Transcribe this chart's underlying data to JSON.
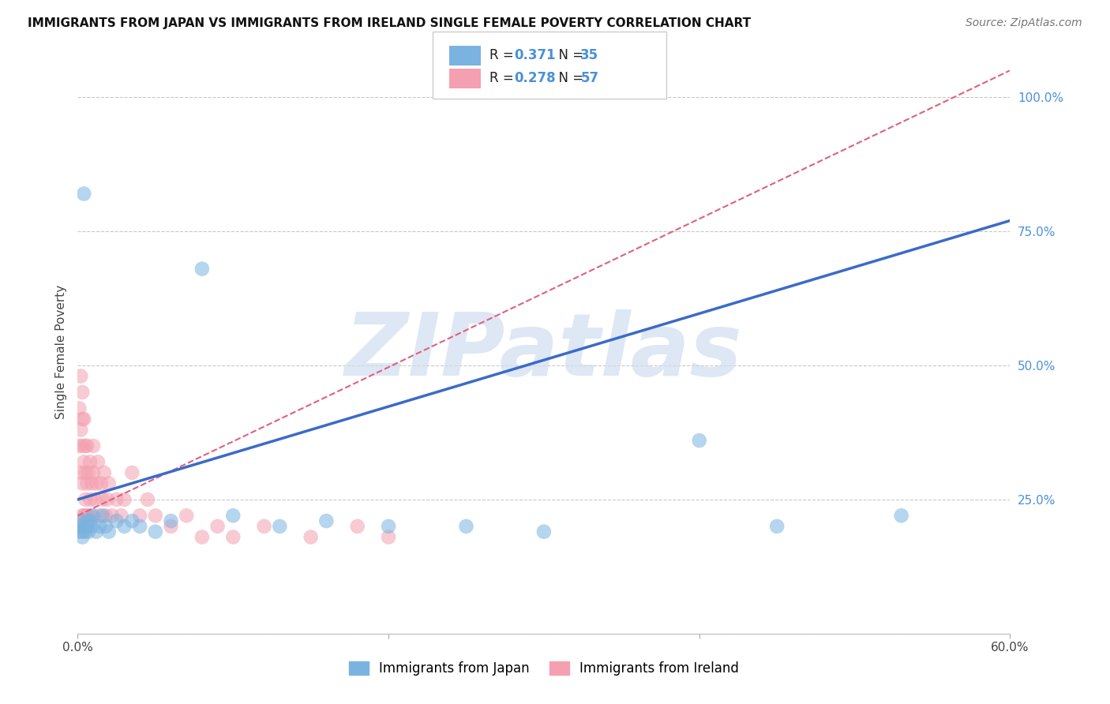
{
  "title": "IMMIGRANTS FROM JAPAN VS IMMIGRANTS FROM IRELAND SINGLE FEMALE POVERTY CORRELATION CHART",
  "source": "Source: ZipAtlas.com",
  "ylabel": "Single Female Poverty",
  "xlim": [
    0.0,
    0.6
  ],
  "ylim": [
    0.0,
    1.05
  ],
  "ytick_positions": [
    0.0,
    0.25,
    0.5,
    0.75,
    1.0
  ],
  "yticklabels": [
    "",
    "25.0%",
    "50.0%",
    "75.0%",
    "100.0%"
  ],
  "r_japan": 0.371,
  "n_japan": 35,
  "r_ireland": 0.278,
  "n_ireland": 57,
  "color_japan": "#7ab3e0",
  "color_ireland": "#f4a0b0",
  "regression_japan_color": "#3a6bc9",
  "regression_ireland_color": "#e06080",
  "yticklabel_color": "#4a90d9",
  "watermark": "ZIPatlas",
  "watermark_color": "#c8d8f0",
  "japan_x": [
    0.001,
    0.002,
    0.003,
    0.003,
    0.004,
    0.005,
    0.005,
    0.006,
    0.006,
    0.007,
    0.008,
    0.009,
    0.01,
    0.012,
    0.014,
    0.016,
    0.018,
    0.02,
    0.025,
    0.03,
    0.035,
    0.04,
    0.05,
    0.06,
    0.08,
    0.1,
    0.13,
    0.16,
    0.2,
    0.25,
    0.3,
    0.4,
    0.45,
    0.53,
    0.001
  ],
  "japan_y": [
    0.2,
    0.21,
    0.19,
    0.18,
    0.82,
    0.2,
    0.19,
    0.21,
    0.2,
    0.19,
    0.21,
    0.2,
    0.22,
    0.19,
    0.2,
    0.22,
    0.2,
    0.19,
    0.21,
    0.2,
    0.21,
    0.2,
    0.19,
    0.21,
    0.68,
    0.22,
    0.2,
    0.21,
    0.2,
    0.2,
    0.19,
    0.36,
    0.2,
    0.22,
    0.19
  ],
  "ireland_x": [
    0.001,
    0.001,
    0.001,
    0.002,
    0.002,
    0.002,
    0.002,
    0.003,
    0.003,
    0.003,
    0.003,
    0.003,
    0.004,
    0.004,
    0.004,
    0.005,
    0.005,
    0.005,
    0.005,
    0.006,
    0.006,
    0.006,
    0.007,
    0.007,
    0.008,
    0.008,
    0.009,
    0.009,
    0.01,
    0.01,
    0.011,
    0.012,
    0.013,
    0.014,
    0.015,
    0.016,
    0.017,
    0.018,
    0.019,
    0.02,
    0.022,
    0.025,
    0.028,
    0.03,
    0.035,
    0.04,
    0.045,
    0.05,
    0.06,
    0.07,
    0.08,
    0.09,
    0.1,
    0.12,
    0.15,
    0.18,
    0.2
  ],
  "ireland_y": [
    0.2,
    0.35,
    0.42,
    0.48,
    0.38,
    0.3,
    0.2,
    0.35,
    0.45,
    0.28,
    0.4,
    0.22,
    0.32,
    0.4,
    0.22,
    0.25,
    0.3,
    0.35,
    0.22,
    0.22,
    0.28,
    0.35,
    0.22,
    0.3,
    0.25,
    0.32,
    0.28,
    0.22,
    0.3,
    0.35,
    0.25,
    0.28,
    0.32,
    0.22,
    0.28,
    0.25,
    0.3,
    0.22,
    0.25,
    0.28,
    0.22,
    0.25,
    0.22,
    0.25,
    0.3,
    0.22,
    0.25,
    0.22,
    0.2,
    0.22,
    0.18,
    0.2,
    0.18,
    0.2,
    0.18,
    0.2,
    0.18
  ]
}
